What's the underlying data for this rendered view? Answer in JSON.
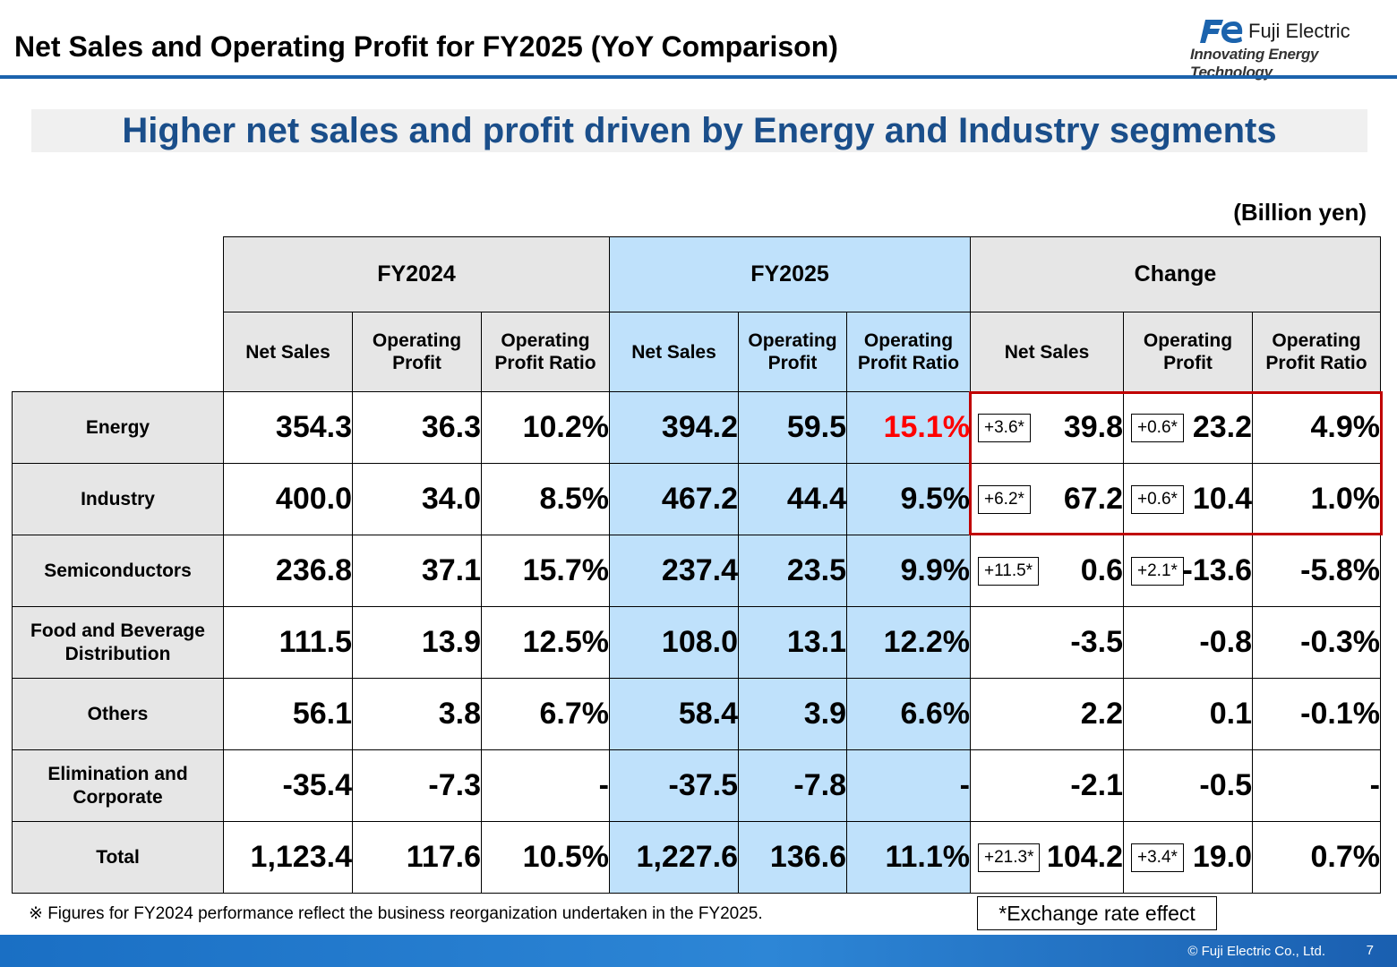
{
  "header": {
    "title": "Net Sales and Operating Profit for FY2025 (YoY Comparison)",
    "logo_name": "Fuji Electric",
    "logo_tagline": "Innovating Energy Technology"
  },
  "headline": "Higher net sales and profit driven by Energy and Industry segments",
  "unit": "(Billion yen)",
  "table": {
    "groups": [
      "FY2024",
      "FY2025",
      "Change"
    ],
    "subheaders": [
      "Net Sales",
      "Operating Profit",
      "Operating Profit Ratio"
    ],
    "rows": [
      {
        "label": "Energy",
        "fy2024": [
          "354.3",
          "36.3",
          "10.2%"
        ],
        "fy2025": [
          "394.2",
          "59.5",
          "15.1%"
        ],
        "change": [
          "39.8",
          "23.2",
          "4.9%"
        ],
        "fx": [
          "+3.6*",
          "+0.6*"
        ]
      },
      {
        "label": "Industry",
        "fy2024": [
          "400.0",
          "34.0",
          "8.5%"
        ],
        "fy2025": [
          "467.2",
          "44.4",
          "9.5%"
        ],
        "change": [
          "67.2",
          "10.4",
          "1.0%"
        ],
        "fx": [
          "+6.2*",
          "+0.6*"
        ]
      },
      {
        "label": "Semiconductors",
        "fy2024": [
          "236.8",
          "37.1",
          "15.7%"
        ],
        "fy2025": [
          "237.4",
          "23.5",
          "9.9%"
        ],
        "change": [
          "0.6",
          "-13.6",
          "-5.8%"
        ],
        "fx": [
          "+11.5*",
          "+2.1*"
        ]
      },
      {
        "label": "Food and Beverage Distribution",
        "fy2024": [
          "111.5",
          "13.9",
          "12.5%"
        ],
        "fy2025": [
          "108.0",
          "13.1",
          "12.2%"
        ],
        "change": [
          "-3.5",
          "-0.8",
          "-0.3%"
        ]
      },
      {
        "label": "Others",
        "fy2024": [
          "56.1",
          "3.8",
          "6.7%"
        ],
        "fy2025": [
          "58.4",
          "3.9",
          "6.6%"
        ],
        "change": [
          "2.2",
          "0.1",
          "-0.1%"
        ]
      },
      {
        "label": "Elimination and Corporate",
        "fy2024": [
          "-35.4",
          "-7.3",
          "-"
        ],
        "fy2025": [
          "-37.5",
          "-7.8",
          "-"
        ],
        "change": [
          "-2.1",
          "-0.5",
          "-"
        ]
      },
      {
        "label": "Total",
        "fy2024": [
          "1,123.4",
          "117.6",
          "10.5%"
        ],
        "fy2025": [
          "1,227.6",
          "136.6",
          "11.1%"
        ],
        "change": [
          "104.2",
          "19.0",
          "0.7%"
        ],
        "fx": [
          "+21.3*",
          "+3.4*"
        ]
      }
    ]
  },
  "footnote": "※ Figures for FY2024 performance reflect the business reorganization undertaken in the FY2025.",
  "fx_legend": "*Exchange rate effect",
  "footer": {
    "copyright": "© Fuji Electric Co., Ltd.",
    "page_number": "7"
  },
  "colors": {
    "title_rule": "#1b63ad",
    "headline_text": "#1a4e8a",
    "fy2025_fill": "#bfe1fb",
    "header_fill": "#e6e6e6",
    "highlight_frame": "#c00000",
    "emphasis_value": "#ff0000"
  }
}
